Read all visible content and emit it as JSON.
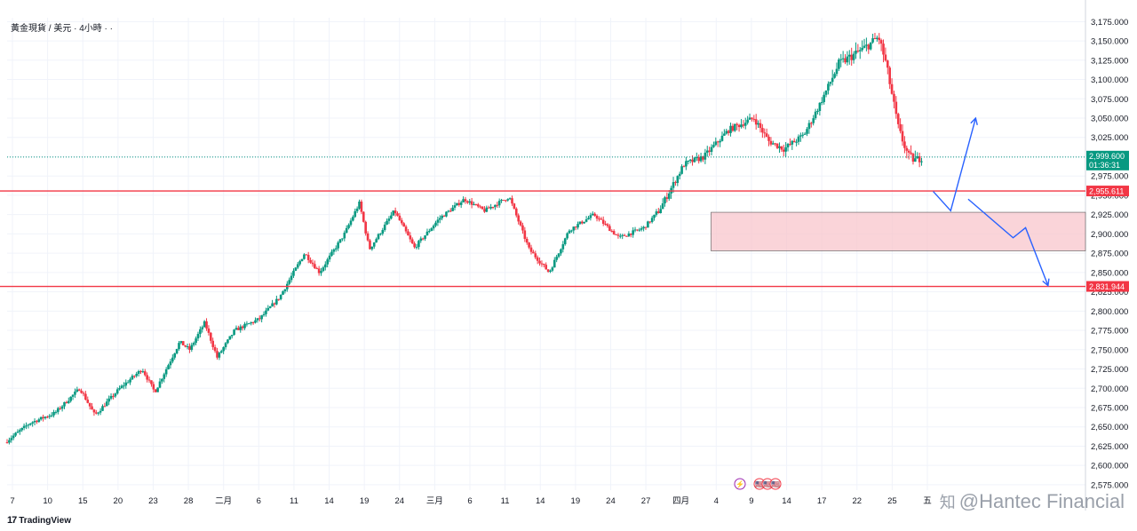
{
  "header": {
    "symbol_title": "黃金現貨 / 美元 · 4小時 · ·"
  },
  "footer": {
    "logo_text": "TradingView",
    "logo_mark": "17"
  },
  "watermark": {
    "icon": "知",
    "text": "@Hantec Financial"
  },
  "colors": {
    "up": "#089981",
    "down": "#f23645",
    "resistance": "#f23645",
    "zone_fill": "#f8c4ca",
    "arrow": "#2962ff",
    "current_price": "#089981"
  },
  "chart_data": {
    "type": "candlestick",
    "title": "黃金現貨 / 美元 · 4小時",
    "y_axis": {
      "range": [
        2568,
        3180
      ],
      "ticks": [
        "2,575.000",
        "2,600.000",
        "2,625.000",
        "2,650.000",
        "2,675.000",
        "2,700.000",
        "2,725.000",
        "2,750.000",
        "2,775.000",
        "2,800.000",
        "2,825.000",
        "2,850.000",
        "2,875.000",
        "2,900.000",
        "2,925.000",
        "2,950.000",
        "2,975.000",
        "3,000.000",
        "3,025.000",
        "3,050.000",
        "3,075.000",
        "3,100.000",
        "3,125.000",
        "3,150.000",
        "3,175.000"
      ]
    },
    "x_axis": {
      "ticks": [
        "7",
        "10",
        "15",
        "20",
        "23",
        "28",
        "二月",
        "6",
        "11",
        "14",
        "19",
        "24",
        "三月",
        "6",
        "11",
        "14",
        "19",
        "24",
        "27",
        "四月",
        "4",
        "9",
        "14",
        "17",
        "22",
        "25",
        "五"
      ]
    },
    "price_path": [
      [
        0,
        2630
      ],
      [
        1,
        2655
      ],
      [
        2,
        2668
      ],
      [
        3,
        2700
      ],
      [
        3.6,
        2665
      ],
      [
        4.6,
        2700
      ],
      [
        5.5,
        2725
      ],
      [
        6,
        2695
      ],
      [
        7,
        2760
      ],
      [
        7.4,
        2750
      ],
      [
        8,
        2785
      ],
      [
        8.5,
        2740
      ],
      [
        9.2,
        2775
      ],
      [
        10.2,
        2790
      ],
      [
        11,
        2818
      ],
      [
        12,
        2875
      ],
      [
        12.6,
        2850
      ],
      [
        13.6,
        2900
      ],
      [
        14.2,
        2940
      ],
      [
        14.6,
        2880
      ],
      [
        15.6,
        2930
      ],
      [
        16.4,
        2882
      ],
      [
        17.4,
        2920
      ],
      [
        18.4,
        2945
      ],
      [
        19.2,
        2930
      ],
      [
        20.2,
        2948
      ],
      [
        21,
        2880
      ],
      [
        21.8,
        2850
      ],
      [
        22.6,
        2905
      ],
      [
        23.6,
        2925
      ],
      [
        24.6,
        2895
      ],
      [
        25.6,
        2908
      ],
      [
        26.2,
        2930
      ],
      [
        27.2,
        2990
      ],
      [
        28,
        3000
      ],
      [
        29,
        3035
      ],
      [
        30,
        3050
      ],
      [
        30.6,
        3020
      ],
      [
        31.2,
        3010
      ],
      [
        32,
        3028
      ],
      [
        32.6,
        3065
      ],
      [
        33.4,
        3120
      ],
      [
        34.4,
        3140
      ],
      [
        35,
        3155
      ],
      [
        35.3,
        3120
      ],
      [
        35.8,
        3035
      ],
      [
        36.2,
        3000
      ],
      [
        36.5,
        2995
      ],
      [
        36.7,
        3000
      ]
    ],
    "current_price": "2,999.600",
    "countdown": "01:36:31",
    "resistance_levels": [
      {
        "value": 2955.611,
        "label": "2,955.611"
      },
      {
        "value": 2831.944,
        "label": "2,831.944"
      }
    ],
    "support_zone": {
      "low": 2878,
      "high": 2928
    },
    "projection_arrows": [
      {
        "name": "bullish-scenario",
        "points": [
          [
            37.1,
            2955
          ],
          [
            37.8,
            2930
          ],
          [
            38.8,
            3050
          ]
        ]
      },
      {
        "name": "bearish-scenario",
        "points": [
          [
            38.5,
            2945
          ],
          [
            40.3,
            2895
          ],
          [
            40.8,
            2908
          ],
          [
            41.7,
            2833
          ]
        ]
      }
    ],
    "event_markers": [
      "⚡",
      "🇺🇸",
      "🇺🇸",
      "🇺🇸"
    ]
  }
}
